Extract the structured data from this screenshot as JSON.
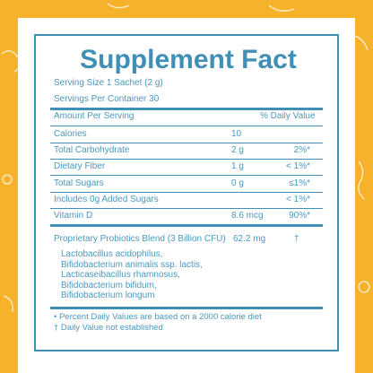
{
  "title": "Supplement Fact",
  "serving_size": "Serving Size 1 Sachet (2 g)",
  "servings_per_container": "Servings Per Container 30",
  "header": {
    "amount": "Amount Per Serving",
    "daily_value": "% Daily Value"
  },
  "rows": [
    [
      "Calories",
      "10",
      ""
    ],
    [
      "Total Carbohydrate",
      "2 g",
      "2%*"
    ],
    [
      "Dietary Fiber",
      "1 g",
      "< 1%*"
    ],
    [
      "Total Sugars",
      "0 g",
      "≤1%*"
    ],
    [
      "Includes 0g Added Sugars",
      "",
      "< 1%*"
    ],
    [
      "Vitamin D",
      "8.6 mcg",
      "90%*"
    ]
  ],
  "blend": {
    "name": "Proprietary Probiotics Blend (3 Billion CFU)",
    "amount": "62.2 mg",
    "daily_value": "†",
    "ingredients": [
      "Lactobacillus acidophilus,",
      "Bifidobacterium animalis ssp. lactis,",
      "Lacticaseibacillus rhamnosus,",
      "Bifidobacterium bifidum,",
      "Bifidobacterium longum"
    ]
  },
  "footnotes": [
    "• Percent Daily Values are based on a 2000 calorie diet",
    "† Daily Value not established"
  ]
}
